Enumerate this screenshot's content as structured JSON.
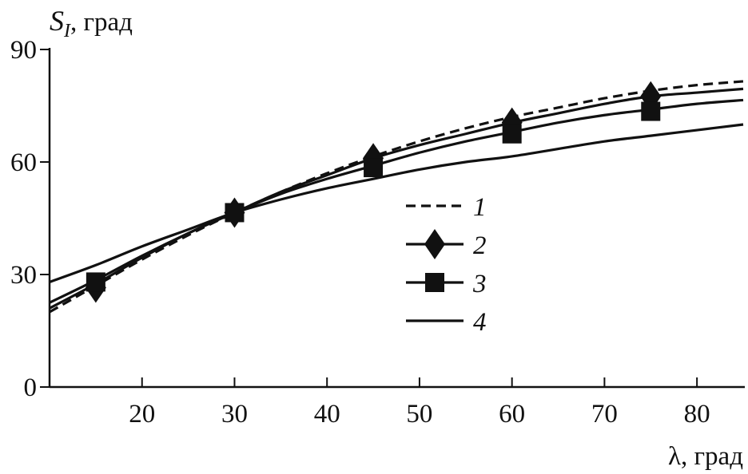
{
  "chart_data": {
    "type": "line",
    "ylabel": {
      "symbol": "S",
      "subscript": "I",
      "unit": ", град"
    },
    "xlabel": "λ, град",
    "xlim": [
      10,
      85
    ],
    "ylim": [
      0,
      90
    ],
    "xticks": [
      20,
      30,
      40,
      50,
      60,
      70,
      80
    ],
    "yticks": [
      0,
      30,
      60,
      90
    ],
    "grid": false,
    "legend_position": "center",
    "series": [
      {
        "name": "1",
        "style": "dashed",
        "marker": "none",
        "x": [
          10,
          15,
          20,
          25,
          30,
          35,
          40,
          45,
          50,
          55,
          60,
          65,
          70,
          75,
          80,
          85
        ],
        "y": [
          20,
          27,
          34,
          40.5,
          46.5,
          52,
          57,
          61.5,
          65.5,
          69,
          72,
          74.5,
          77,
          79,
          80.5,
          81.5
        ]
      },
      {
        "name": "2",
        "style": "solid",
        "marker": "diamond",
        "x": [
          10,
          15,
          20,
          25,
          30,
          35,
          40,
          45,
          50,
          55,
          60,
          65,
          70,
          75,
          80,
          85
        ],
        "y": [
          21,
          27.5,
          34.5,
          41,
          46.5,
          52,
          56.5,
          61,
          64.5,
          67.5,
          70.5,
          73,
          75.5,
          77.5,
          78.5,
          79.5
        ],
        "marker_x": [
          15,
          30,
          45,
          60,
          75
        ],
        "marker_y": [
          26.5,
          46.5,
          61,
          70.5,
          77.5
        ]
      },
      {
        "name": "3",
        "style": "solid",
        "marker": "square",
        "x": [
          10,
          15,
          20,
          25,
          30,
          35,
          40,
          45,
          50,
          55,
          60,
          65,
          70,
          75,
          80,
          85
        ],
        "y": [
          22.5,
          28.5,
          35,
          41,
          46.5,
          51.5,
          55.5,
          59,
          62.5,
          65.5,
          68,
          70.5,
          72.5,
          74,
          75.5,
          76.5
        ],
        "marker_x": [
          15,
          30,
          45,
          60,
          75
        ],
        "marker_y": [
          28,
          46.5,
          58.5,
          67.5,
          73.5
        ]
      },
      {
        "name": "4",
        "style": "solid",
        "marker": "none",
        "x": [
          10,
          15,
          20,
          25,
          30,
          35,
          40,
          45,
          50,
          55,
          60,
          65,
          70,
          75,
          80,
          85
        ],
        "y": [
          28,
          32.5,
          37.5,
          42,
          46.5,
          50,
          53,
          55.5,
          58,
          60,
          61.5,
          63.5,
          65.5,
          67,
          68.5,
          70
        ]
      }
    ]
  }
}
